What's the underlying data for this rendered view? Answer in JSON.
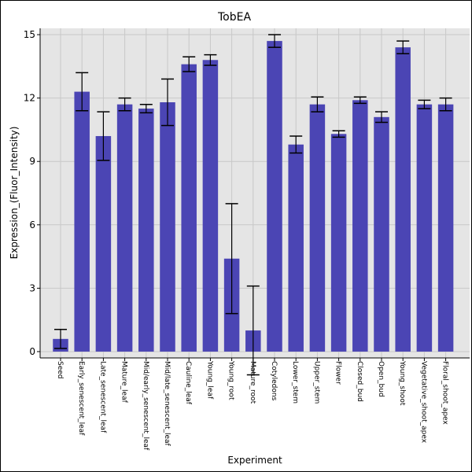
{
  "chart_data": {
    "type": "bar",
    "title": "TobEA",
    "xlabel": "Experiment",
    "ylabel": "Expression_(Fluor_Intensity)",
    "ylim": [
      -0.3,
      15.3
    ],
    "yticks": [
      0,
      3,
      6,
      9,
      12,
      15
    ],
    "grid": true,
    "background": "#e5e5e5",
    "bar_color": "#4b45b4",
    "categories": [
      "Seed",
      "Early_senescent_leaf",
      "Late_senescent_leaf",
      "Mature_leaf",
      "Mid/early_senescent_leaf",
      "Mid/late_senescent_leaf",
      "Cauline_leaf",
      "Young_leaf",
      "Young_root",
      "Mature_root",
      "Cotyledons",
      "Lower_stem",
      "Upper_stem",
      "Flower",
      "Closed_bud",
      "Open_bud",
      "Young_shoot",
      "Vegetative_shoot_apex",
      "Floral_shoot_apex"
    ],
    "values": [
      0.6,
      12.3,
      10.2,
      11.7,
      11.5,
      11.8,
      13.6,
      13.8,
      4.4,
      1.0,
      14.7,
      9.8,
      11.7,
      10.3,
      11.9,
      11.1,
      14.4,
      11.7,
      11.7
    ],
    "errors": [
      0.45,
      0.9,
      1.15,
      0.3,
      0.2,
      1.1,
      0.35,
      0.25,
      2.6,
      2.1,
      0.3,
      0.4,
      0.35,
      0.15,
      0.15,
      0.25,
      0.3,
      0.2,
      0.3
    ]
  }
}
